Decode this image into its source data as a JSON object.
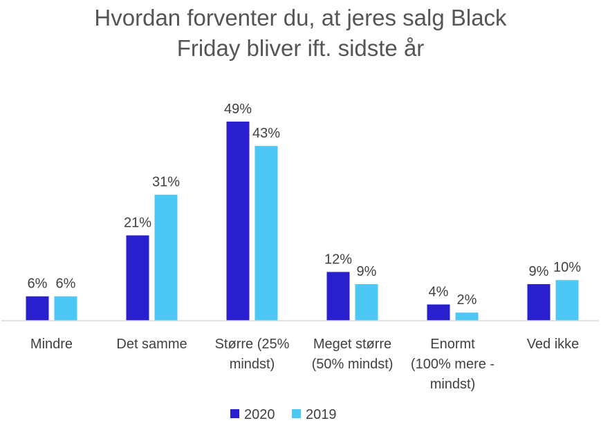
{
  "chart_data": {
    "type": "bar",
    "title_lines": [
      "Hvordan forventer du, at jeres salg Black",
      "Friday bliver ift. sidste år"
    ],
    "categories": [
      [
        "Mindre"
      ],
      [
        "Det samme"
      ],
      [
        "Større (25%",
        "mindst)"
      ],
      [
        "Meget større",
        "(50% mindst)"
      ],
      [
        "Enormt",
        "(100% mere -",
        "mindst)"
      ],
      [
        "Ved ikke"
      ]
    ],
    "series": [
      {
        "name": "2020",
        "color": "#2a1fcc",
        "values": [
          6,
          21,
          49,
          12,
          4,
          9
        ],
        "labels": [
          "6%",
          "21%",
          "49%",
          "12%",
          "4%",
          "9%"
        ]
      },
      {
        "name": "2019",
        "color": "#4dc8f5",
        "values": [
          6,
          31,
          43,
          9,
          2,
          10
        ],
        "labels": [
          "6%",
          "31%",
          "43%",
          "9%",
          "2%",
          "10%"
        ]
      }
    ],
    "ylim": [
      0,
      50
    ],
    "grid": false,
    "legend": "bottom-center"
  }
}
